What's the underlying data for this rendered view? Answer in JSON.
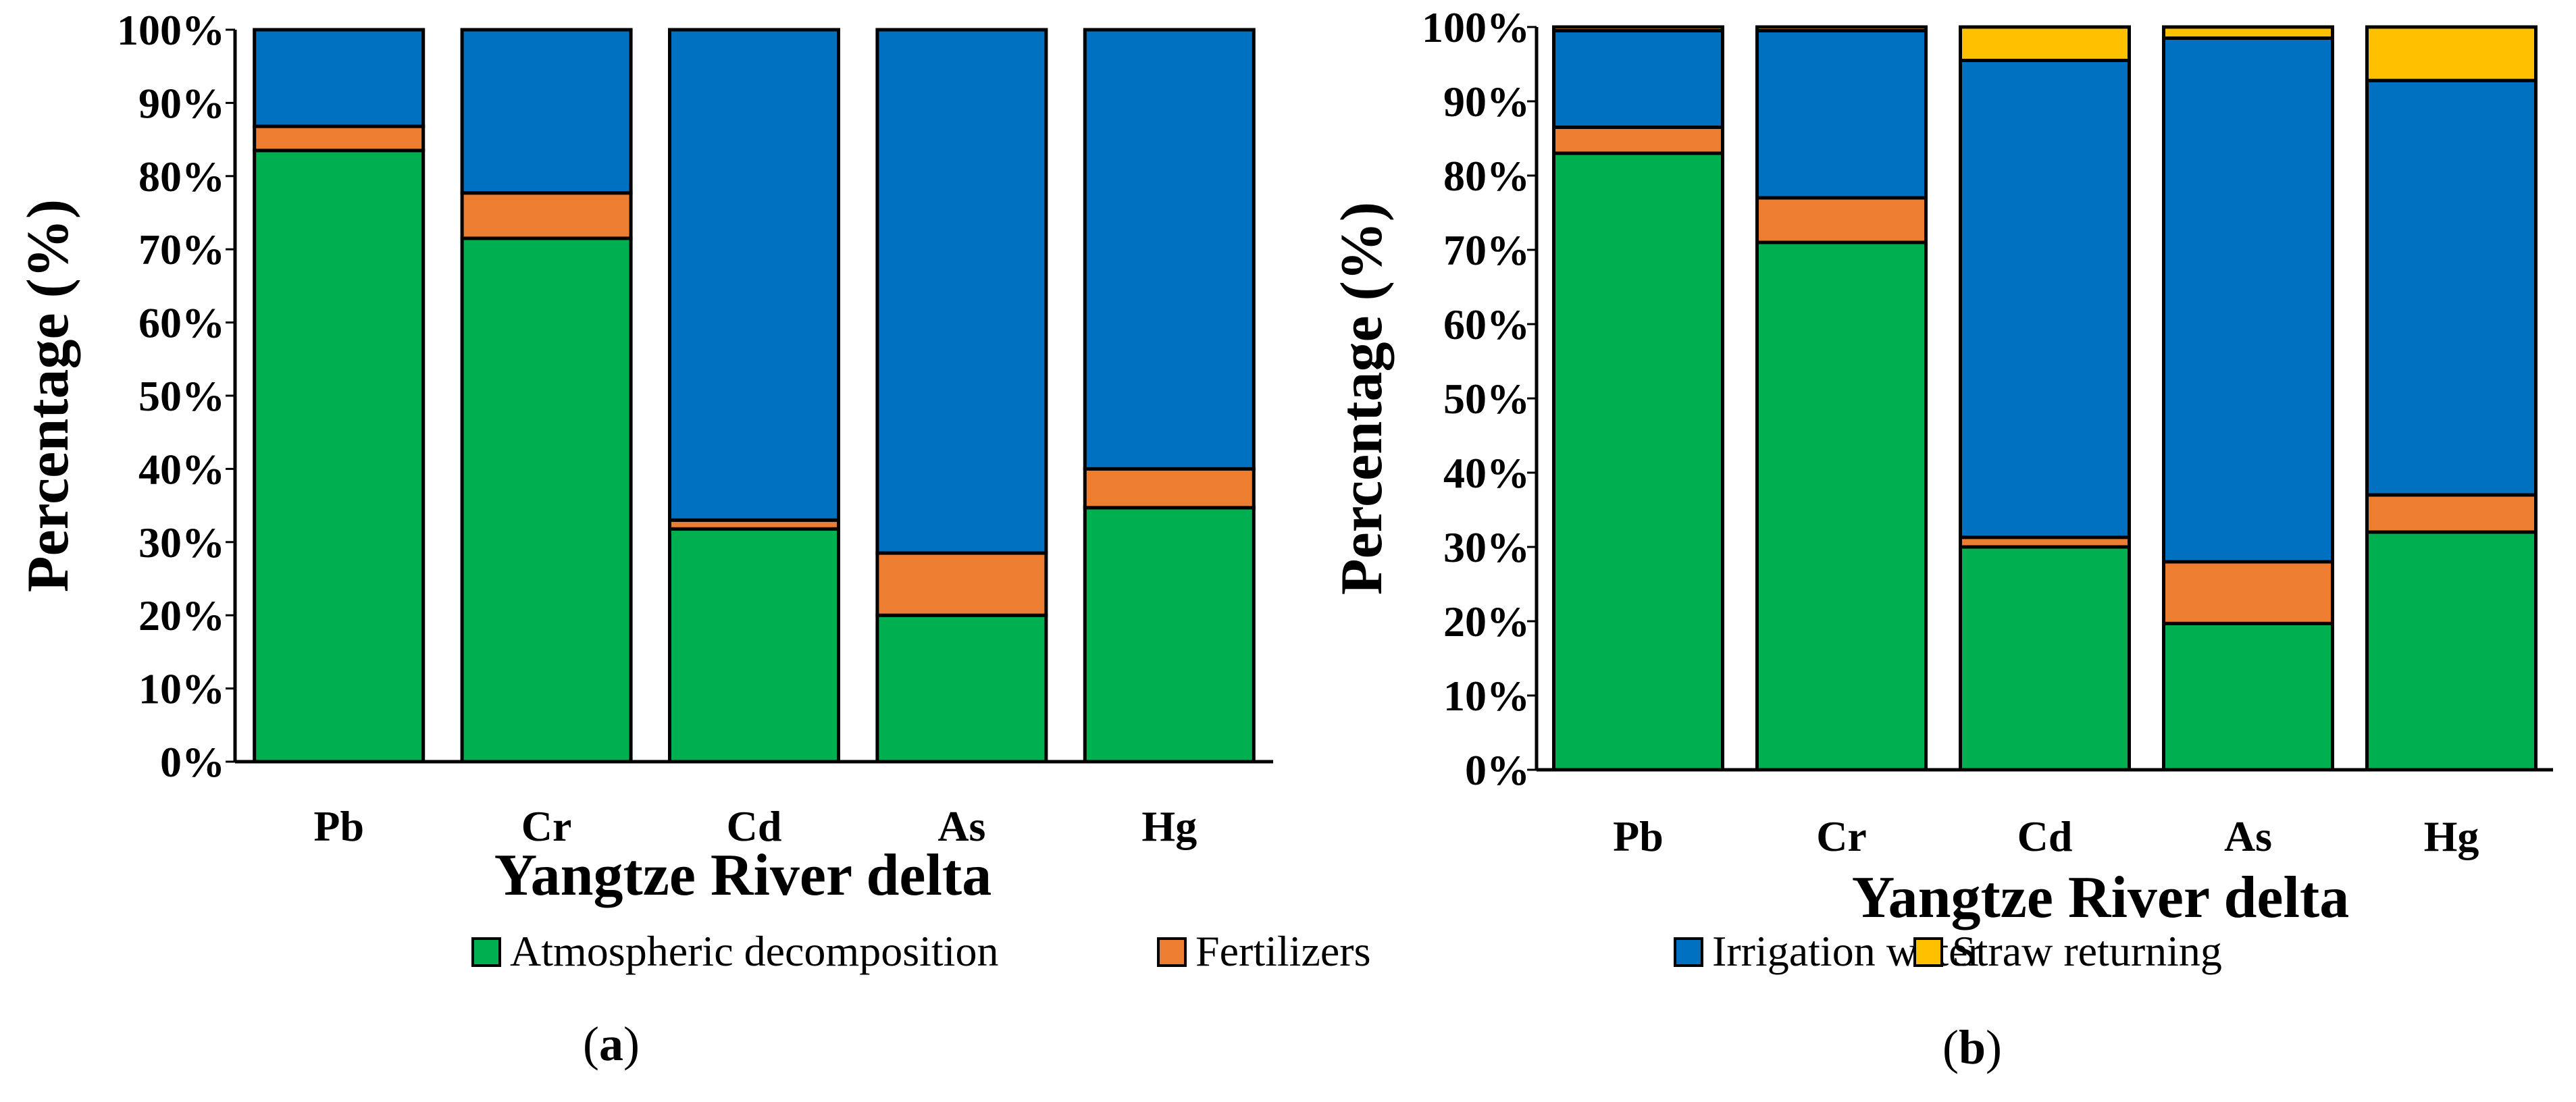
{
  "colors": {
    "Atmospheric decomposition": "#00b050",
    "Fertilizers": "#ed7d31",
    "Irrigation water": "#0070c0",
    "Straw returning": "#ffc000"
  },
  "legend": [
    "Atmospheric decomposition",
    "Fertilizers",
    "Irrigation water",
    "Straw returning"
  ],
  "chart_data": [
    {
      "type": "bar",
      "stacked": true,
      "percent": true,
      "panel": "a",
      "panel_label": "(a)",
      "categories": [
        "Pb",
        "Cr",
        "Cd",
        "As",
        "Hg"
      ],
      "series": [
        {
          "name": "Atmospheric decomposition",
          "values": [
            83.5,
            71.5,
            31.8,
            20.0,
            34.7
          ]
        },
        {
          "name": "Fertilizers",
          "values": [
            3.3,
            6.2,
            1.2,
            8.5,
            5.3
          ]
        },
        {
          "name": "Irrigation water",
          "values": [
            13.2,
            22.3,
            67.0,
            71.5,
            60.0
          ]
        }
      ],
      "xlabel": "Yangtze River delta",
      "ylabel": "Percentage (%)",
      "ylim": [
        0,
        100
      ],
      "yticks": [
        "0%",
        "10%",
        "20%",
        "30%",
        "40%",
        "50%",
        "60%",
        "70%",
        "80%",
        "90%",
        "100%"
      ]
    },
    {
      "type": "bar",
      "stacked": true,
      "percent": true,
      "panel": "b",
      "panel_label": "(b)",
      "categories": [
        "Pb",
        "Cr",
        "Cd",
        "As",
        "Hg"
      ],
      "series": [
        {
          "name": "Atmospheric decomposition",
          "values": [
            83.0,
            71.0,
            30.0,
            19.7,
            32.0
          ]
        },
        {
          "name": "Fertilizers",
          "values": [
            3.5,
            6.0,
            1.3,
            8.3,
            5.0
          ]
        },
        {
          "name": "Irrigation water",
          "values": [
            13.0,
            22.5,
            64.2,
            70.5,
            55.8
          ]
        },
        {
          "name": "Straw returning",
          "values": [
            0.5,
            0.5,
            4.5,
            1.5,
            7.2
          ]
        }
      ],
      "xlabel": "Yangtze River delta",
      "ylabel": "Percentage (%)",
      "ylim": [
        0,
        100
      ],
      "yticks": [
        "0%",
        "10%",
        "20%",
        "30%",
        "40%",
        "50%",
        "60%",
        "70%",
        "80%",
        "90%",
        "100%"
      ]
    }
  ]
}
